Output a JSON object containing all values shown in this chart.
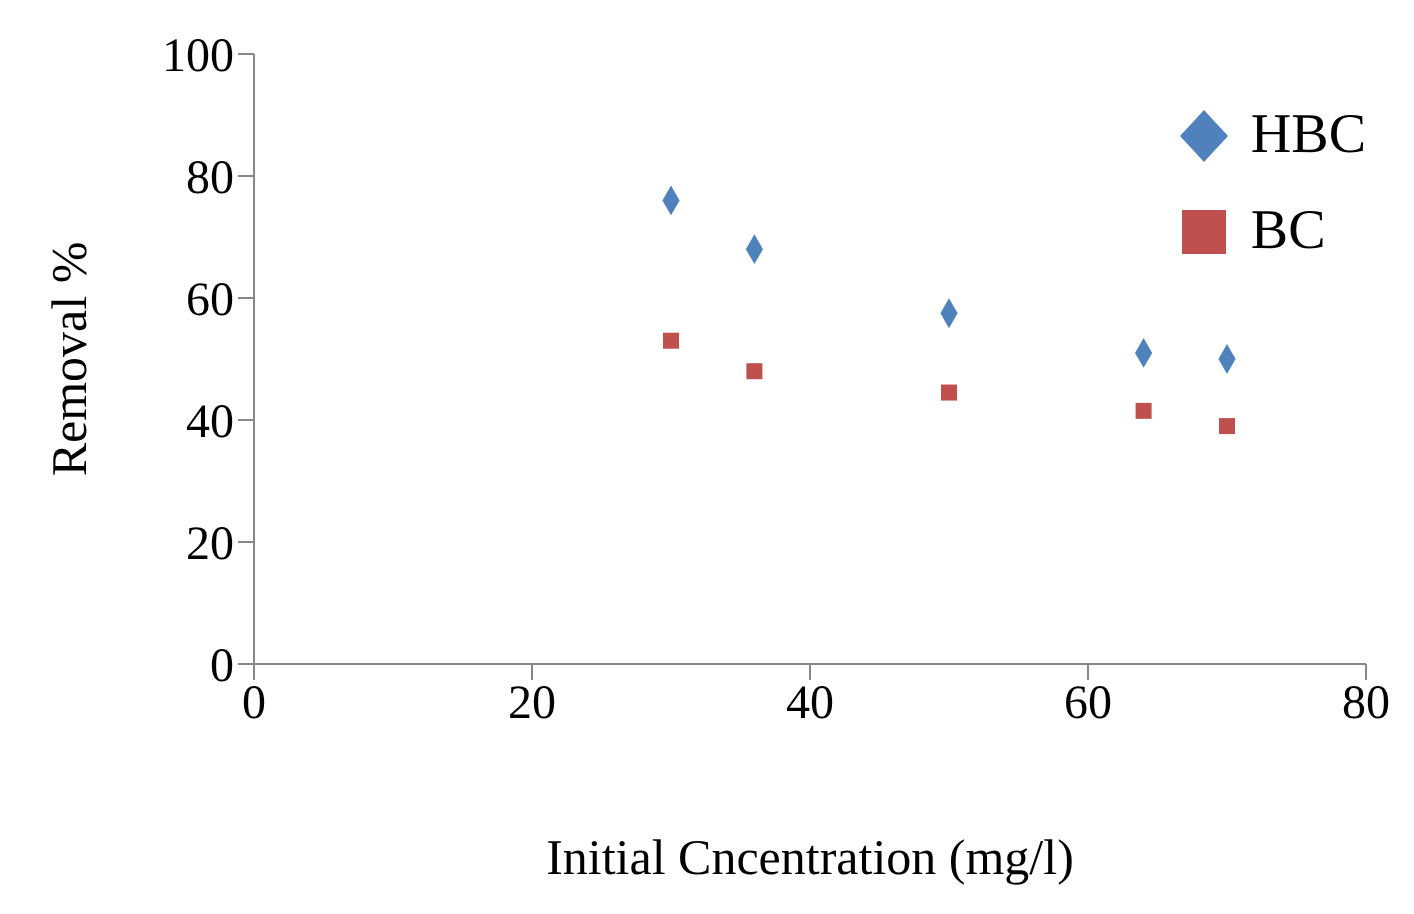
{
  "chart_data": {
    "type": "scatter",
    "xlabel": "Initial Cncentration (mg/l)",
    "ylabel": "Removal %",
    "x": [
      30,
      36,
      50,
      64,
      70
    ],
    "series": [
      {
        "name": "HBC",
        "color": "#4f81bd",
        "marker": "diamond",
        "values": [
          76,
          68,
          57.5,
          51,
          50
        ]
      },
      {
        "name": "BC",
        "color": "#c0504d",
        "marker": "square",
        "values": [
          53,
          48,
          44.5,
          41.5,
          39
        ]
      }
    ],
    "xlim": [
      0,
      80
    ],
    "xticks": [
      0,
      20,
      40,
      60,
      80
    ],
    "ylim": [
      0,
      100
    ],
    "yticks": [
      0,
      20,
      40,
      60,
      80,
      100
    ],
    "grid": false,
    "legend": "top right"
  }
}
